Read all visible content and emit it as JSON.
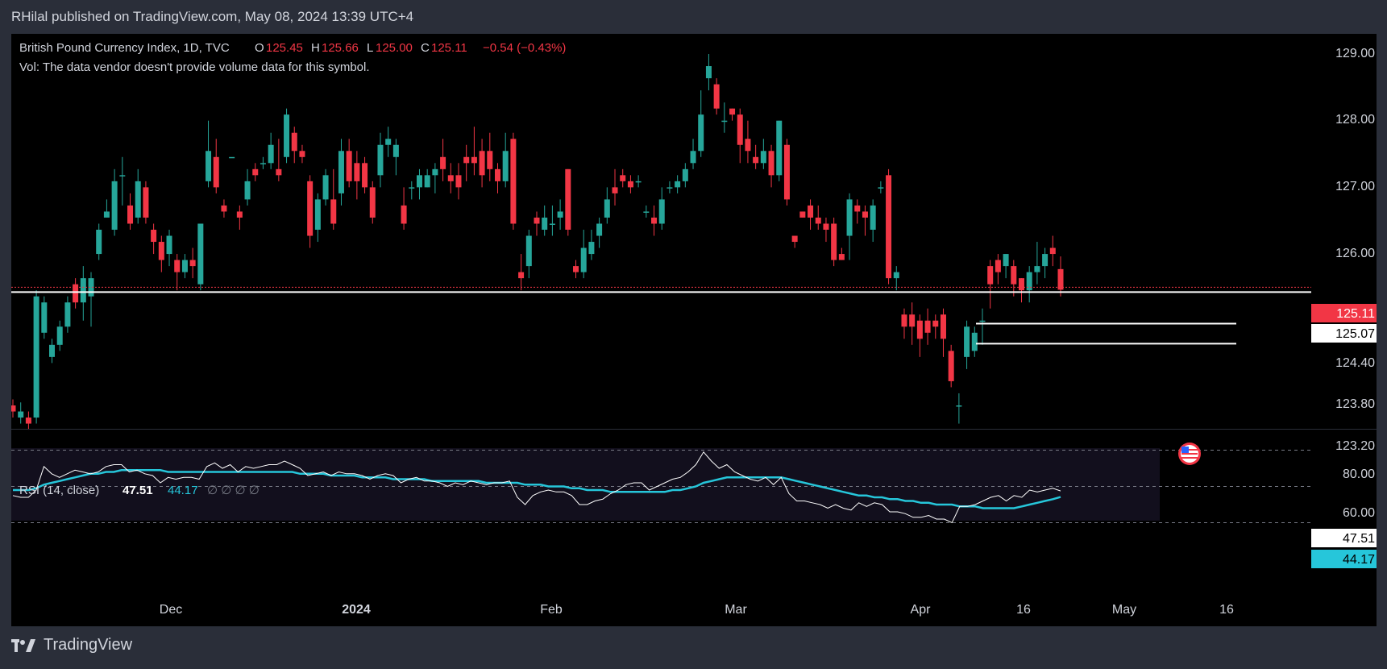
{
  "header": {
    "text": "RHilal published on TradingView.com, May 08, 2024 13:39 UTC+4"
  },
  "legend": {
    "symbol": "British Pound Currency Index, 1D, TVC",
    "o_label": "O",
    "o": "125.45",
    "h_label": "H",
    "h": "125.66",
    "l_label": "L",
    "l": "125.00",
    "c_label": "C",
    "c": "125.11",
    "change": "−0.54 (−0.43%)",
    "vol": "Vol: The data vendor doesn't provide volume data for this symbol."
  },
  "rsi_legend": {
    "name": "RSI (14, close)",
    "rsi": "47.51",
    "ma": "44.17",
    "extra": "∅ ∅ ∅ ∅"
  },
  "price_axis": {
    "ticks": [
      "129.00",
      "128.00",
      "127.00",
      "126.00",
      "124.40",
      "123.80",
      "123.20"
    ],
    "last_price": "125.11",
    "line_price": "125.07"
  },
  "rsi_axis": {
    "ticks": [
      "80.00",
      "60.00"
    ],
    "rsi_value": "47.51",
    "ma_value": "44.17"
  },
  "time_axis": {
    "labels": [
      "Dec",
      "2024",
      "Feb",
      "Mar",
      "Apr",
      "16",
      "May",
      "16"
    ]
  },
  "footer": {
    "brand": "TradingView"
  },
  "colors": {
    "up": "#26a69a",
    "down": "#f23645",
    "rsi_line": "#ffffff",
    "rsi_ma": "#26c6da",
    "bg": "#000000",
    "panel": "#2a2e39"
  },
  "chart_data": [
    {
      "type": "candlestick",
      "title": "British Pound Currency Index, 1D, TVC",
      "y_range": [
        122.8,
        129.4
      ],
      "candles": [
        [
          123.2,
          123.1,
          123.3,
          123.0
        ],
        [
          123.0,
          123.1,
          123.25,
          122.9
        ],
        [
          123.0,
          122.9,
          123.1,
          122.8
        ],
        [
          123.0,
          125.0,
          125.1,
          122.9
        ],
        [
          124.4,
          124.9,
          125.0,
          124.3
        ],
        [
          124.0,
          124.2,
          124.3,
          123.9
        ],
        [
          124.2,
          124.5,
          124.6,
          124.1
        ],
        [
          124.5,
          124.9,
          125.0,
          124.4
        ],
        [
          125.2,
          124.9,
          125.3,
          124.8
        ],
        [
          124.9,
          125.3,
          125.5,
          124.6
        ],
        [
          125.0,
          125.3,
          125.4,
          124.5
        ],
        [
          125.7,
          126.1,
          126.2,
          125.6
        ],
        [
          126.3,
          126.4,
          126.6,
          126.3
        ],
        [
          126.1,
          126.9,
          127.1,
          126.0
        ],
        [
          127.0,
          127.0,
          127.3,
          126.5
        ],
        [
          126.5,
          126.2,
          126.7,
          126.1
        ],
        [
          126.3,
          126.9,
          127.1,
          126.2
        ],
        [
          126.8,
          126.3,
          126.9,
          126.2
        ],
        [
          126.1,
          125.9,
          126.2,
          125.7
        ],
        [
          125.9,
          125.6,
          126.0,
          125.4
        ],
        [
          125.7,
          126.0,
          126.1,
          125.5
        ],
        [
          125.6,
          125.4,
          125.7,
          125.1
        ],
        [
          125.4,
          125.6,
          125.7,
          125.3
        ],
        [
          125.6,
          125.5,
          125.8,
          125.3
        ],
        [
          125.2,
          126.2,
          126.2,
          125.1
        ],
        [
          126.9,
          127.4,
          127.9,
          126.8
        ],
        [
          127.3,
          126.8,
          127.6,
          126.7
        ],
        [
          126.5,
          126.4,
          126.6,
          126.3
        ],
        [
          127.3,
          127.3,
          127.3,
          127.3
        ],
        [
          126.4,
          126.3,
          126.5,
          126.1
        ],
        [
          126.6,
          126.9,
          127.1,
          126.5
        ],
        [
          127.1,
          127.0,
          127.2,
          126.9
        ],
        [
          127.2,
          127.2,
          127.3,
          127.1
        ],
        [
          127.2,
          127.5,
          127.7,
          127.1
        ],
        [
          127.1,
          127.0,
          127.6,
          126.9
        ],
        [
          127.3,
          128.0,
          128.1,
          127.2
        ],
        [
          127.7,
          127.4,
          127.8,
          127.2
        ],
        [
          127.4,
          127.3,
          127.5,
          127.2
        ],
        [
          126.9,
          126.0,
          127.0,
          125.8
        ],
        [
          126.1,
          126.6,
          126.7,
          125.9
        ],
        [
          126.6,
          127.0,
          127.1,
          126.5
        ],
        [
          126.6,
          126.2,
          127.1,
          126.1
        ],
        [
          126.7,
          127.4,
          127.6,
          126.5
        ],
        [
          127.4,
          126.9,
          127.6,
          126.8
        ],
        [
          127.2,
          126.9,
          127.4,
          126.6
        ],
        [
          127.2,
          126.8,
          127.3,
          126.7
        ],
        [
          126.8,
          126.3,
          126.9,
          126.2
        ],
        [
          127.0,
          127.5,
          127.7,
          126.8
        ],
        [
          127.5,
          127.6,
          127.8,
          127.3
        ],
        [
          127.3,
          127.5,
          127.6,
          127.0
        ],
        [
          126.5,
          126.2,
          126.8,
          126.1
        ],
        [
          126.8,
          126.8,
          126.9,
          126.6
        ],
        [
          126.8,
          127.0,
          127.1,
          126.6
        ],
        [
          126.8,
          127.0,
          127.1,
          126.8
        ],
        [
          127.0,
          127.1,
          127.2,
          126.7
        ],
        [
          127.3,
          127.1,
          127.6,
          126.9
        ],
        [
          127.0,
          126.9,
          127.2,
          126.7
        ],
        [
          127.0,
          126.8,
          127.2,
          126.6
        ],
        [
          127.3,
          127.2,
          127.5,
          126.9
        ],
        [
          127.3,
          127.2,
          127.8,
          127.0
        ],
        [
          127.4,
          127.0,
          127.6,
          126.8
        ],
        [
          127.4,
          127.1,
          127.7,
          126.9
        ],
        [
          127.1,
          126.9,
          127.2,
          126.7
        ],
        [
          126.9,
          127.4,
          127.7,
          126.8
        ],
        [
          127.6,
          126.2,
          127.7,
          126.1
        ],
        [
          125.4,
          125.3,
          125.7,
          125.1
        ],
        [
          125.5,
          126.0,
          126.1,
          125.3
        ],
        [
          126.3,
          126.2,
          126.4,
          126.0
        ],
        [
          126.1,
          126.3,
          126.5,
          126.0
        ],
        [
          126.2,
          126.2,
          126.5,
          126.0
        ],
        [
          126.3,
          126.4,
          126.6,
          126.1
        ],
        [
          127.1,
          126.1,
          127.1,
          126.0
        ],
        [
          125.5,
          125.4,
          125.6,
          125.3
        ],
        [
          125.4,
          125.8,
          126.1,
          125.3
        ],
        [
          125.7,
          125.9,
          126.1,
          125.6
        ],
        [
          126.0,
          126.2,
          126.3,
          125.8
        ],
        [
          126.3,
          126.6,
          126.8,
          126.2
        ],
        [
          126.8,
          126.7,
          127.1,
          126.5
        ],
        [
          127.0,
          126.9,
          127.1,
          126.8
        ],
        [
          126.9,
          126.8,
          127.0,
          126.7
        ],
        [
          126.9,
          126.9,
          127.0,
          126.8
        ],
        [
          126.4,
          126.4,
          126.5,
          126.3
        ],
        [
          126.3,
          126.2,
          126.5,
          126.0
        ],
        [
          126.2,
          126.6,
          126.8,
          126.1
        ],
        [
          126.8,
          126.8,
          126.9,
          126.7
        ],
        [
          126.8,
          126.9,
          127.0,
          126.7
        ],
        [
          126.9,
          127.1,
          127.2,
          126.8
        ],
        [
          127.2,
          127.4,
          127.6,
          127.1
        ],
        [
          127.4,
          128.0,
          128.4,
          127.3
        ],
        [
          128.6,
          128.8,
          129.0,
          128.4
        ],
        [
          128.5,
          128.1,
          128.6,
          128.0
        ],
        [
          127.9,
          127.9,
          128.2,
          127.7
        ],
        [
          128.1,
          128.0,
          128.1,
          127.9
        ],
        [
          128.0,
          127.5,
          128.1,
          127.2
        ],
        [
          127.6,
          127.4,
          127.9,
          127.2
        ],
        [
          127.3,
          127.2,
          127.5,
          127.1
        ],
        [
          127.2,
          127.4,
          127.6,
          127.1
        ],
        [
          127.4,
          127.0,
          127.5,
          126.8
        ],
        [
          127.0,
          127.9,
          127.9,
          126.9
        ],
        [
          127.5,
          126.6,
          127.6,
          126.5
        ],
        [
          126.0,
          125.9,
          126.0,
          125.8
        ],
        [
          126.4,
          126.3,
          126.4,
          126.3
        ],
        [
          126.5,
          126.3,
          126.6,
          126.1
        ],
        [
          126.3,
          126.2,
          126.5,
          126.1
        ],
        [
          126.2,
          126.1,
          126.3,
          125.9
        ],
        [
          126.2,
          125.6,
          126.3,
          125.5
        ],
        [
          125.7,
          125.6,
          125.8,
          125.6
        ],
        [
          126.0,
          126.6,
          126.7,
          125.6
        ],
        [
          126.5,
          126.4,
          126.6,
          126.2
        ],
        [
          126.4,
          126.3,
          126.5,
          126.0
        ],
        [
          126.1,
          126.5,
          126.6,
          125.9
        ],
        [
          126.8,
          126.8,
          126.9,
          126.7
        ],
        [
          127.0,
          125.3,
          127.1,
          125.2
        ],
        [
          125.3,
          125.4,
          125.5,
          125.1
        ],
        [
          124.7,
          124.5,
          124.8,
          124.3
        ],
        [
          124.7,
          124.5,
          124.9,
          124.2
        ],
        [
          124.6,
          124.3,
          124.7,
          124.0
        ],
        [
          124.6,
          124.4,
          124.8,
          124.2
        ],
        [
          124.6,
          124.5,
          124.7,
          124.3
        ],
        [
          124.7,
          124.3,
          124.8,
          124.0
        ],
        [
          124.1,
          123.6,
          124.2,
          123.5
        ],
        [
          123.2,
          123.2,
          123.4,
          122.9
        ],
        [
          124.0,
          124.5,
          124.6,
          123.8
        ],
        [
          124.1,
          124.4,
          124.5,
          124.0
        ],
        [
          124.6,
          124.6,
          124.8,
          124.2
        ],
        [
          125.5,
          125.2,
          125.6,
          124.8
        ],
        [
          125.6,
          125.4,
          125.7,
          125.2
        ],
        [
          125.5,
          125.7,
          125.7,
          125.3
        ],
        [
          125.5,
          125.2,
          125.6,
          125.0
        ],
        [
          125.3,
          125.1,
          125.3,
          124.9
        ],
        [
          125.1,
          125.4,
          125.5,
          124.9
        ],
        [
          125.4,
          125.5,
          125.9,
          125.2
        ],
        [
          125.5,
          125.7,
          125.8,
          125.3
        ],
        [
          125.8,
          125.7,
          126.0,
          125.5
        ],
        [
          125.45,
          125.11,
          125.66,
          125.0
        ]
      ],
      "horizontal_levels": [
        125.07,
        124.55,
        124.22
      ]
    },
    {
      "type": "line",
      "title": "RSI (14, close)",
      "y_range": [
        30,
        80
      ],
      "bands": [
        70,
        50,
        30
      ],
      "series": [
        {
          "name": "RSI",
          "values": [
            45,
            44,
            44,
            48,
            61,
            57,
            55,
            57,
            59,
            58,
            57,
            58,
            61,
            62,
            62,
            58,
            59,
            57,
            56,
            52,
            55,
            54,
            55,
            55,
            54,
            61,
            63,
            60,
            62,
            58,
            61,
            60,
            61,
            62,
            62,
            64,
            62,
            60,
            56,
            57,
            58,
            56,
            58,
            57,
            57,
            56,
            54,
            56,
            57,
            56,
            52,
            54,
            55,
            53,
            53,
            52,
            50,
            52,
            51,
            53,
            52,
            51,
            52,
            52,
            53,
            44,
            40,
            45,
            47,
            48,
            47,
            47,
            45,
            40,
            40,
            42,
            43,
            46,
            48,
            51,
            52,
            52,
            48,
            50,
            52,
            54,
            55,
            58,
            62,
            69,
            64,
            60,
            62,
            58,
            56,
            54,
            53,
            55,
            51,
            55,
            46,
            42,
            42,
            41,
            40,
            38,
            40,
            38,
            37,
            41,
            39,
            41,
            40,
            36,
            36,
            35,
            33,
            33,
            34,
            32,
            32,
            30,
            39,
            39,
            40,
            42,
            44,
            45,
            42,
            45,
            44,
            48,
            47,
            48,
            49,
            47.51
          ]
        },
        {
          "name": "MA",
          "values": [
            48,
            48,
            48,
            49,
            51,
            52,
            53,
            54,
            55,
            56,
            57,
            57,
            58,
            58,
            59,
            59,
            59,
            59,
            59,
            59,
            58,
            58,
            58,
            58,
            58,
            58,
            58,
            58,
            58,
            58,
            58,
            58,
            58,
            58,
            58,
            58,
            58,
            57,
            57,
            57,
            57,
            56,
            56,
            56,
            56,
            55,
            55,
            55,
            55,
            54,
            54,
            54,
            54,
            54,
            53,
            53,
            53,
            53,
            53,
            53,
            53,
            52,
            52,
            52,
            52,
            52,
            51,
            51,
            51,
            50,
            50,
            50,
            49,
            49,
            48,
            48,
            48,
            47,
            47,
            47,
            47,
            47,
            47,
            47,
            47,
            48,
            48,
            49,
            50,
            52,
            53,
            54,
            55,
            55,
            55,
            55,
            55,
            55,
            55,
            55,
            54,
            53,
            52,
            51,
            50,
            49,
            48,
            47,
            46,
            45,
            45,
            44,
            44,
            43,
            43,
            42,
            42,
            41,
            41,
            40,
            40,
            40,
            39,
            39,
            39,
            38,
            38,
            38,
            38,
            38,
            39,
            40,
            41,
            42,
            43,
            44.17
          ]
        }
      ]
    }
  ]
}
